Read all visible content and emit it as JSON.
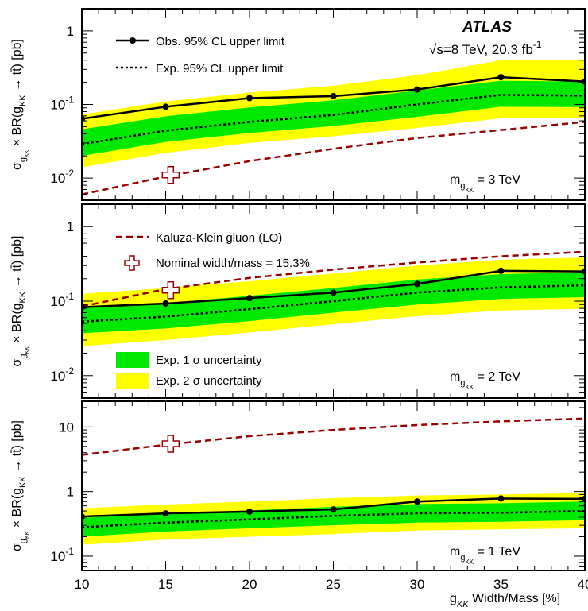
{
  "figure": {
    "experiment": "ATLAS",
    "energy_label": "√s=8 TeV, 20.3 fb",
    "lumi_sup": "-1",
    "x_axis_label": "g",
    "x_axis_label_sub": "KK",
    "x_axis_label_rest": " Width/Mass [%]",
    "y_axis_label": "σ",
    "y_axis_sub": "g",
    "y_axis_subsub": "KK",
    "y_axis_mid": " × BR(g",
    "y_axis_mid_sub": "KK",
    "y_axis_end": " → tt̄) [pb]"
  },
  "legend": {
    "obs": "Obs. 95% CL upper limit",
    "exp": "Exp. 95% CL upper limit",
    "theory": "Kaluza-Klein gluon (LO)",
    "nominal": "Nominal width/mass = 15.3%",
    "band1": "Exp. 1 σ uncertainty",
    "band2": "Exp. 2 σ uncertainty"
  },
  "colors": {
    "band1": "#00e800",
    "band2": "#ffff00",
    "observed": "#000000",
    "expected": "#000000",
    "theory": "#990000"
  },
  "chart_data": [
    {
      "type": "line",
      "panel_label": "m",
      "panel_label_sub": "g",
      "panel_label_subsub": "KK",
      "panel_label_value": " = 3 TeV",
      "x": [
        10,
        15,
        20,
        25,
        30,
        35,
        40
      ],
      "xlim": [
        10,
        40
      ],
      "ylim": [
        0.005,
        2.0
      ],
      "yscale": "log",
      "y_ticks": [
        {
          "value": 0.01,
          "base": "10",
          "exp": "-2"
        },
        {
          "value": 0.1,
          "base": "10",
          "exp": "-1"
        },
        {
          "value": 1,
          "base": "1",
          "exp": ""
        }
      ],
      "observed": [
        0.064,
        0.093,
        0.122,
        0.13,
        0.16,
        0.235,
        0.205
      ],
      "expected": [
        0.029,
        0.044,
        0.058,
        0.072,
        0.1,
        0.135,
        0.132
      ],
      "band1_low": [
        0.02,
        0.031,
        0.041,
        0.051,
        0.068,
        0.093,
        0.092
      ],
      "band1_high": [
        0.046,
        0.069,
        0.091,
        0.114,
        0.155,
        0.21,
        0.205
      ],
      "band2_low": [
        0.014,
        0.022,
        0.03,
        0.037,
        0.048,
        0.065,
        0.065
      ],
      "band2_high": [
        0.073,
        0.11,
        0.145,
        0.18,
        0.25,
        0.4,
        0.4
      ],
      "theory": [
        0.006,
        0.0105,
        0.017,
        0.025,
        0.035,
        0.045,
        0.058
      ],
      "nominal": {
        "x": 15.3,
        "y": 0.011
      }
    },
    {
      "type": "line",
      "panel_label": "m",
      "panel_label_sub": "g",
      "panel_label_subsub": "KK",
      "panel_label_value": " = 2 TeV",
      "x": [
        10,
        15,
        20,
        25,
        30,
        35,
        40
      ],
      "xlim": [
        10,
        40
      ],
      "ylim": [
        0.005,
        2.0
      ],
      "yscale": "log",
      "y_ticks": [
        {
          "value": 0.01,
          "base": "10",
          "exp": "-2"
        },
        {
          "value": 0.1,
          "base": "10",
          "exp": "-1"
        },
        {
          "value": 1,
          "base": "1",
          "exp": ""
        }
      ],
      "observed": [
        0.083,
        0.093,
        0.11,
        0.13,
        0.17,
        0.255,
        0.25
      ],
      "expected": [
        0.053,
        0.062,
        0.078,
        0.1,
        0.13,
        0.153,
        0.163
      ],
      "band1_low": [
        0.037,
        0.043,
        0.054,
        0.07,
        0.09,
        0.107,
        0.113
      ],
      "band1_high": [
        0.08,
        0.094,
        0.118,
        0.15,
        0.195,
        0.23,
        0.245
      ],
      "band2_low": [
        0.025,
        0.03,
        0.038,
        0.049,
        0.063,
        0.075,
        0.079
      ],
      "band2_high": [
        0.125,
        0.15,
        0.185,
        0.235,
        0.3,
        0.36,
        0.385
      ],
      "theory": [
        0.085,
        0.145,
        0.205,
        0.265,
        0.33,
        0.4,
        0.46
      ],
      "nominal": {
        "x": 15.3,
        "y": 0.14
      }
    },
    {
      "type": "line",
      "panel_label": "m",
      "panel_label_sub": "g",
      "panel_label_subsub": "KK",
      "panel_label_value": " = 1 TeV",
      "x": [
        10,
        15,
        20,
        25,
        30,
        35,
        40
      ],
      "xlim": [
        10,
        40
      ],
      "ylim": [
        0.06,
        25
      ],
      "yscale": "log",
      "y_ticks": [
        {
          "value": 0.1,
          "base": "10",
          "exp": "-1"
        },
        {
          "value": 1,
          "base": "1",
          "exp": ""
        },
        {
          "value": 10,
          "base": "10",
          "exp": ""
        }
      ],
      "x_ticks": [
        "10",
        "15",
        "20",
        "25",
        "30",
        "35",
        "40"
      ],
      "observed": [
        0.41,
        0.46,
        0.49,
        0.53,
        0.7,
        0.78,
        0.77
      ],
      "expected": [
        0.28,
        0.33,
        0.37,
        0.42,
        0.46,
        0.47,
        0.5
      ],
      "band1_low": [
        0.2,
        0.24,
        0.27,
        0.3,
        0.33,
        0.34,
        0.36
      ],
      "band1_high": [
        0.39,
        0.46,
        0.51,
        0.58,
        0.64,
        0.66,
        0.7
      ],
      "band2_low": [
        0.15,
        0.18,
        0.2,
        0.22,
        0.25,
        0.26,
        0.27
      ],
      "band2_high": [
        0.55,
        0.63,
        0.7,
        0.79,
        0.87,
        0.9,
        0.95
      ],
      "theory": [
        3.7,
        5.3,
        7.2,
        9.0,
        10.7,
        12.2,
        13.5
      ],
      "nominal": {
        "x": 15.3,
        "y": 5.5
      }
    }
  ]
}
